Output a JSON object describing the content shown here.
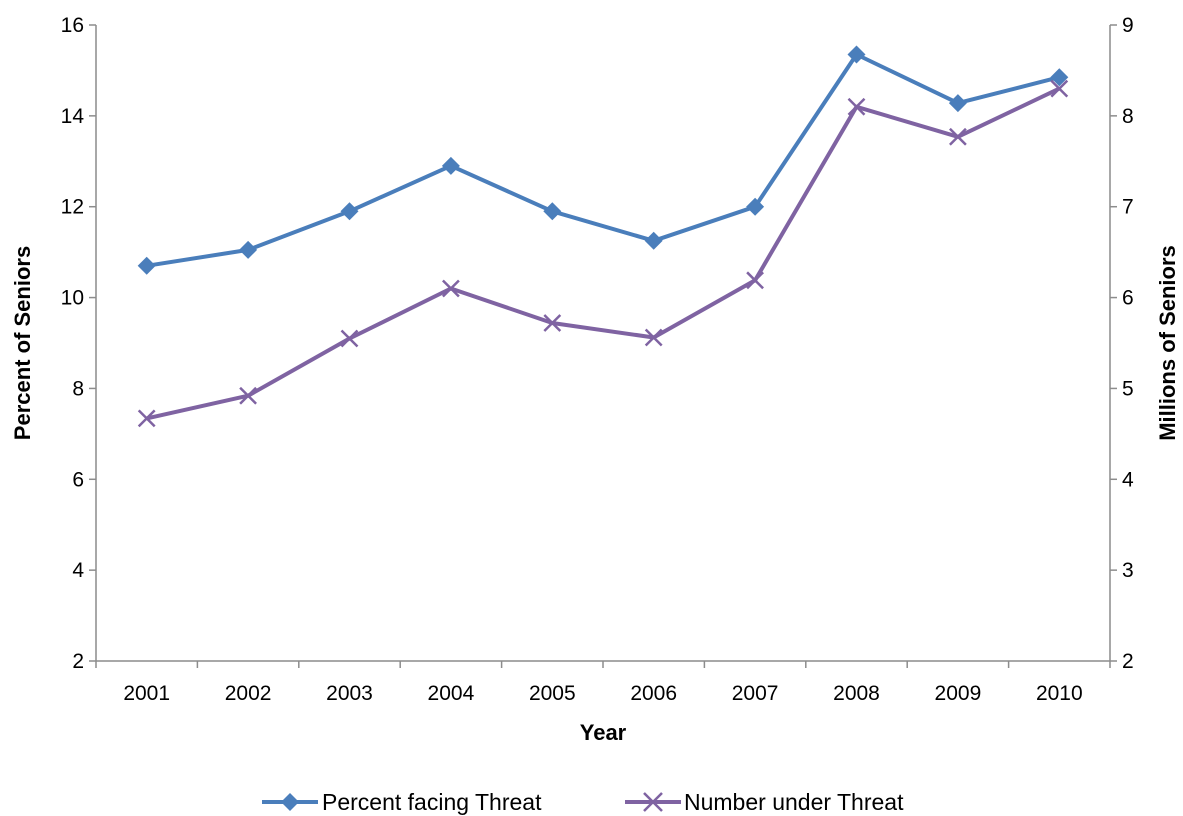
{
  "chart_data": {
    "type": "line",
    "title": "",
    "xlabel": "Year",
    "ylabel_left": "Percent of Seniors",
    "ylabel_right": "Millions of Seniors",
    "categories": [
      "2001",
      "2002",
      "2003",
      "2004",
      "2005",
      "2006",
      "2007",
      "2008",
      "2009",
      "2010"
    ],
    "ylim_left": [
      2,
      16
    ],
    "yticks_left": [
      "2",
      "4",
      "6",
      "8",
      "10",
      "12",
      "14",
      "16"
    ],
    "ylim_right": [
      2,
      9
    ],
    "yticks_right": [
      "2",
      "3",
      "4",
      "5",
      "6",
      "7",
      "8",
      "9"
    ],
    "grid": false,
    "legend_position": "bottom",
    "series": [
      {
        "name": "Percent facing Threat",
        "axis": "left",
        "marker": "diamond",
        "color": "#4a7ebb",
        "values": [
          10.7,
          11.05,
          11.9,
          12.9,
          11.9,
          11.25,
          12.0,
          15.35,
          14.28,
          14.85
        ]
      },
      {
        "name": "Number under Threat",
        "axis": "right",
        "marker": "x",
        "color": "#7f63a2",
        "values": [
          4.67,
          4.92,
          5.55,
          6.1,
          5.72,
          5.56,
          6.19,
          8.1,
          7.77,
          8.3
        ]
      }
    ]
  }
}
